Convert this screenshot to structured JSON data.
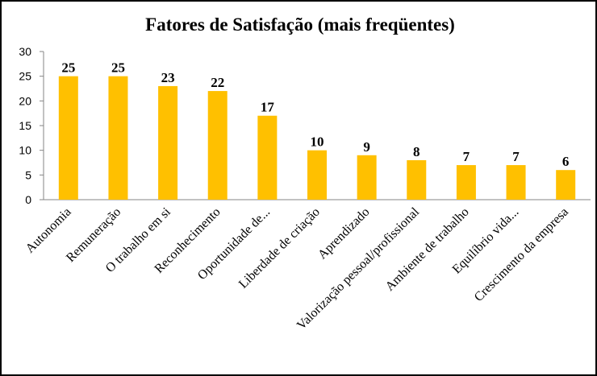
{
  "chart_data": {
    "type": "bar",
    "title": "Fatores de Satisfação (mais freqüentes)",
    "categories": [
      "Autonomia",
      "Remuneração",
      "O trabalho em si",
      "Reconhecimento",
      "Oportunidade de...",
      "Liberdade de criação",
      "Aprendizado",
      "Valorização pessoal/profissional",
      "Ambiente de trabalho",
      "Equilíbrio vida...",
      "Crescimento da empresa"
    ],
    "values": [
      25,
      25,
      23,
      22,
      17,
      10,
      9,
      8,
      7,
      7,
      6
    ],
    "ylim": [
      0,
      30
    ],
    "yticks": [
      0,
      5,
      10,
      15,
      20,
      25,
      30
    ],
    "xlabel": "",
    "ylabel": "",
    "grid": false,
    "legend": "none",
    "colors": {
      "bar": "#FFC000",
      "axis": "#868686",
      "text": "#000000"
    }
  }
}
